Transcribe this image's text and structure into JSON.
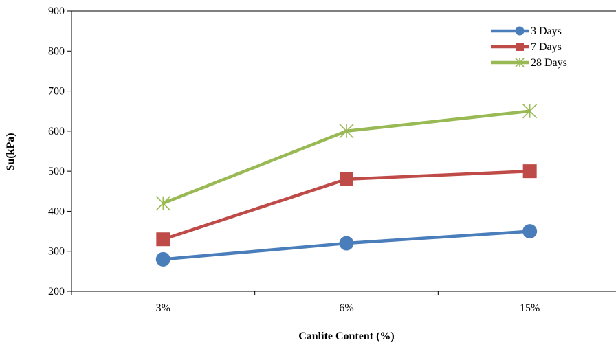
{
  "chart_data": {
    "type": "line",
    "title": "",
    "xlabel": "Canlite Content (%)",
    "ylabel": "Su(kPa)",
    "categories": [
      "3%",
      "6%",
      "15%"
    ],
    "ylim": [
      200,
      900
    ],
    "yticks": [
      200,
      300,
      400,
      500,
      600,
      700,
      800,
      900
    ],
    "grid": false,
    "legend_position": "top-right",
    "series": [
      {
        "name": "3 Days",
        "values": [
          280,
          320,
          350
        ],
        "color": "#4a7ebb",
        "marker": "circle"
      },
      {
        "name": "7 Days",
        "values": [
          330,
          480,
          500
        ],
        "color": "#be4b48",
        "marker": "square"
      },
      {
        "name": "28 Days",
        "values": [
          420,
          600,
          650
        ],
        "color": "#98b954",
        "marker": "star"
      }
    ]
  }
}
